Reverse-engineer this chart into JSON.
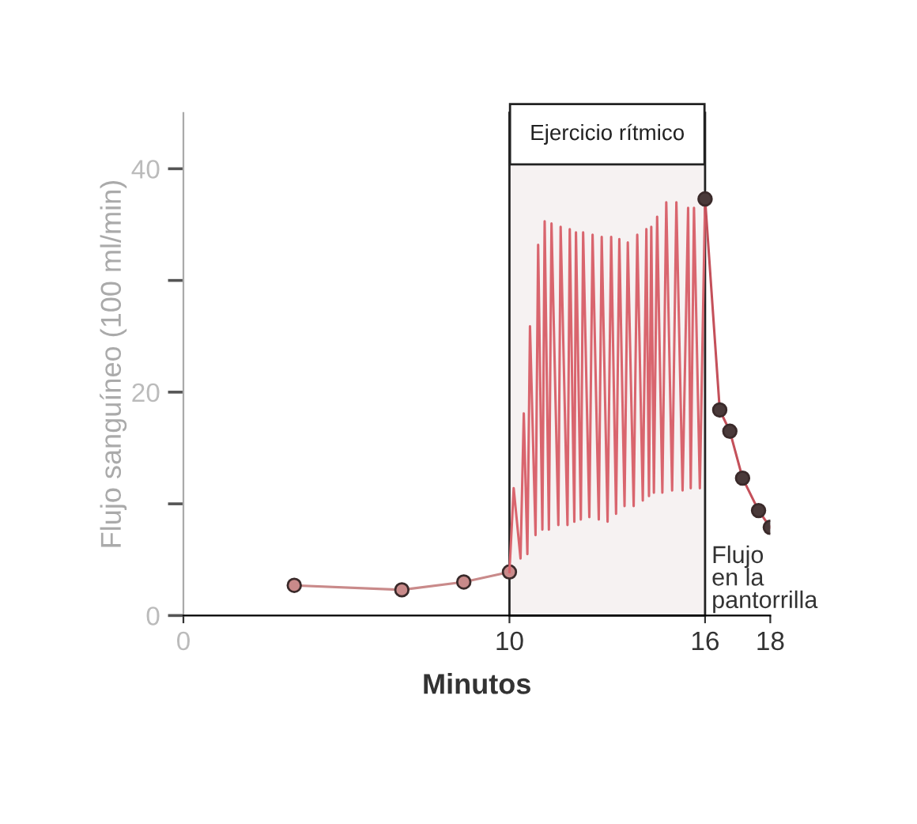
{
  "chart_data": {
    "type": "line",
    "xlabel": "Minutos",
    "ylabel": "Flujo sanguíneo (100 ml/min)",
    "xlim": [
      0,
      18
    ],
    "xticks": [
      0,
      10,
      16,
      18
    ],
    "ylim": [
      0,
      45
    ],
    "yticks": [
      0,
      {
        "value": 10,
        "label": null
      },
      20,
      {
        "value": 30,
        "label": null
      },
      40
    ],
    "grid": false,
    "legend": false,
    "series": [
      {
        "color": "#c98a8a",
        "marker": "circle",
        "x": [
          3.4,
          6.7,
          8.6,
          10.0
        ],
        "values": [
          2.7,
          2.3,
          3.0,
          3.9
        ]
      },
      {
        "color": "#d9656e",
        "marker": "none",
        "x": [
          10.0,
          10.13,
          10.34,
          10.44,
          10.55,
          10.63,
          10.8,
          10.88,
          11.01,
          11.08,
          11.21,
          11.29,
          11.5,
          11.57,
          11.78,
          11.85,
          11.99,
          12.04,
          12.19,
          12.26,
          12.45,
          12.55,
          12.74,
          12.83,
          13.01,
          13.12,
          13.27,
          13.37,
          13.53,
          13.63,
          13.81,
          13.92,
          14.09,
          14.2,
          14.28,
          14.35,
          14.43,
          14.53,
          14.69,
          14.81,
          14.99,
          15.12,
          15.31,
          15.48,
          15.56,
          15.66,
          15.84,
          16.0
        ],
        "values": [
          3.9,
          11.4,
          5.1,
          18.1,
          5.5,
          25.9,
          7.2,
          33.2,
          7.7,
          35.3,
          7.7,
          35.1,
          8.1,
          34.8,
          8.1,
          34.6,
          8.4,
          34.3,
          8.6,
          34.3,
          8.8,
          34.1,
          8.6,
          33.9,
          8.4,
          33.9,
          9.1,
          33.7,
          9.8,
          33.4,
          9.8,
          34.1,
          10.3,
          34.6,
          10.7,
          34.8,
          11.0,
          35.7,
          11.0,
          37.0,
          11.2,
          37.0,
          11.2,
          36.5,
          11.4,
          36.5,
          11.4,
          37.2
        ]
      },
      {
        "color": "#c4505a",
        "marker": "circle",
        "x": [
          16.0,
          16.45,
          16.76,
          17.15,
          17.64,
          18.0
        ],
        "values": [
          37.3,
          18.4,
          16.5,
          12.3,
          9.4,
          7.9
        ]
      }
    ],
    "bands": [
      {
        "axis": "x",
        "from": 10,
        "to": 16,
        "label": "Ejercicio rítmico",
        "color": "#f6f2f2"
      }
    ],
    "annotations": [
      "Flujo\nen la\npantorrilla"
    ]
  }
}
